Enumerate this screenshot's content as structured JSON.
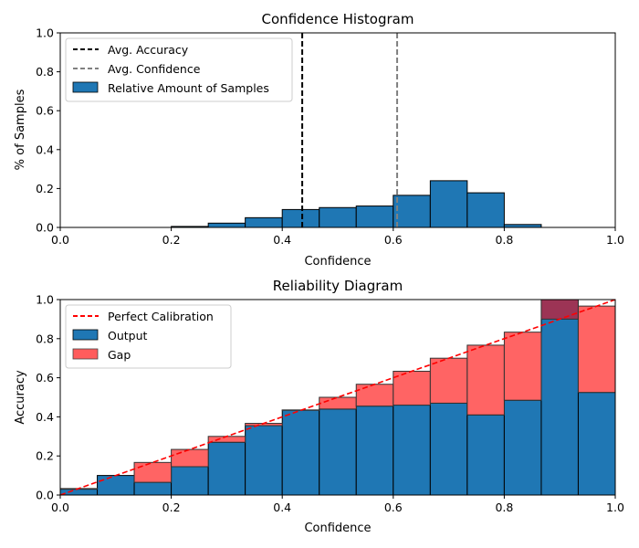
{
  "colors": {
    "bar": "#1f77b4",
    "gap": "#ff5c5c",
    "over": "#a33050",
    "edge": "#000000",
    "accuracy_line": "#000000",
    "confidence_line": "#808080",
    "perfect_line": "#ff0000"
  },
  "chart_data": [
    {
      "type": "bar",
      "title": "Confidence Histogram",
      "xlabel": "Confidence",
      "ylabel": "% of Samples",
      "xlim": [
        0,
        1
      ],
      "ylim": [
        0,
        1
      ],
      "xticks": [
        "0.0",
        "0.2",
        "0.4",
        "0.6",
        "0.8",
        "1.0"
      ],
      "yticks": [
        "0.0",
        "0.2",
        "0.4",
        "0.6",
        "0.8",
        "1.0"
      ],
      "bin_edges": [
        0,
        0.0667,
        0.1333,
        0.2,
        0.2667,
        0.3333,
        0.4,
        0.4667,
        0.5333,
        0.6,
        0.6667,
        0.7333,
        0.8,
        0.8667,
        0.9333,
        1.0
      ],
      "values": [
        0,
        0,
        0,
        0.005,
        0.022,
        0.05,
        0.092,
        0.102,
        0.11,
        0.165,
        0.24,
        0.178,
        0.015,
        0,
        0
      ],
      "avg_accuracy": 0.436,
      "avg_confidence": 0.607,
      "legend": [
        "Avg. Accuracy",
        "Avg. Confidence",
        "Relative Amount of Samples"
      ]
    },
    {
      "type": "bar",
      "title": "Reliability Diagram",
      "xlabel": "Confidence",
      "ylabel": "Accuracy",
      "xlim": [
        0,
        1
      ],
      "ylim": [
        0,
        1
      ],
      "xticks": [
        "0.0",
        "0.2",
        "0.4",
        "0.6",
        "0.8",
        "1.0"
      ],
      "yticks": [
        "0.0",
        "0.2",
        "0.4",
        "0.6",
        "0.8",
        "1.0"
      ],
      "bin_edges": [
        0,
        0.0667,
        0.1333,
        0.2,
        0.2667,
        0.3333,
        0.4,
        0.4667,
        0.5333,
        0.6,
        0.6667,
        0.7333,
        0.8,
        0.8667,
        0.9333,
        1.0
      ],
      "series": [
        {
          "name": "Output",
          "values": [
            0.03,
            0.1,
            0.065,
            0.145,
            0.27,
            0.355,
            0.435,
            0.44,
            0.455,
            0.46,
            0.47,
            0.41,
            0.485,
            1.0,
            0.525
          ]
        },
        {
          "name": "Gap",
          "bin_centers": [
            0.0333,
            0.1,
            0.1667,
            0.2333,
            0.3,
            0.3667,
            0.4333,
            0.5,
            0.5667,
            0.6333,
            0.7,
            0.7667,
            0.8333,
            0.9,
            0.9667
          ]
        }
      ],
      "reference_line": {
        "name": "Perfect Calibration",
        "from": [
          0,
          0
        ],
        "to": [
          1,
          1
        ]
      },
      "legend": [
        "Perfect Calibration",
        "Output",
        "Gap"
      ]
    }
  ]
}
